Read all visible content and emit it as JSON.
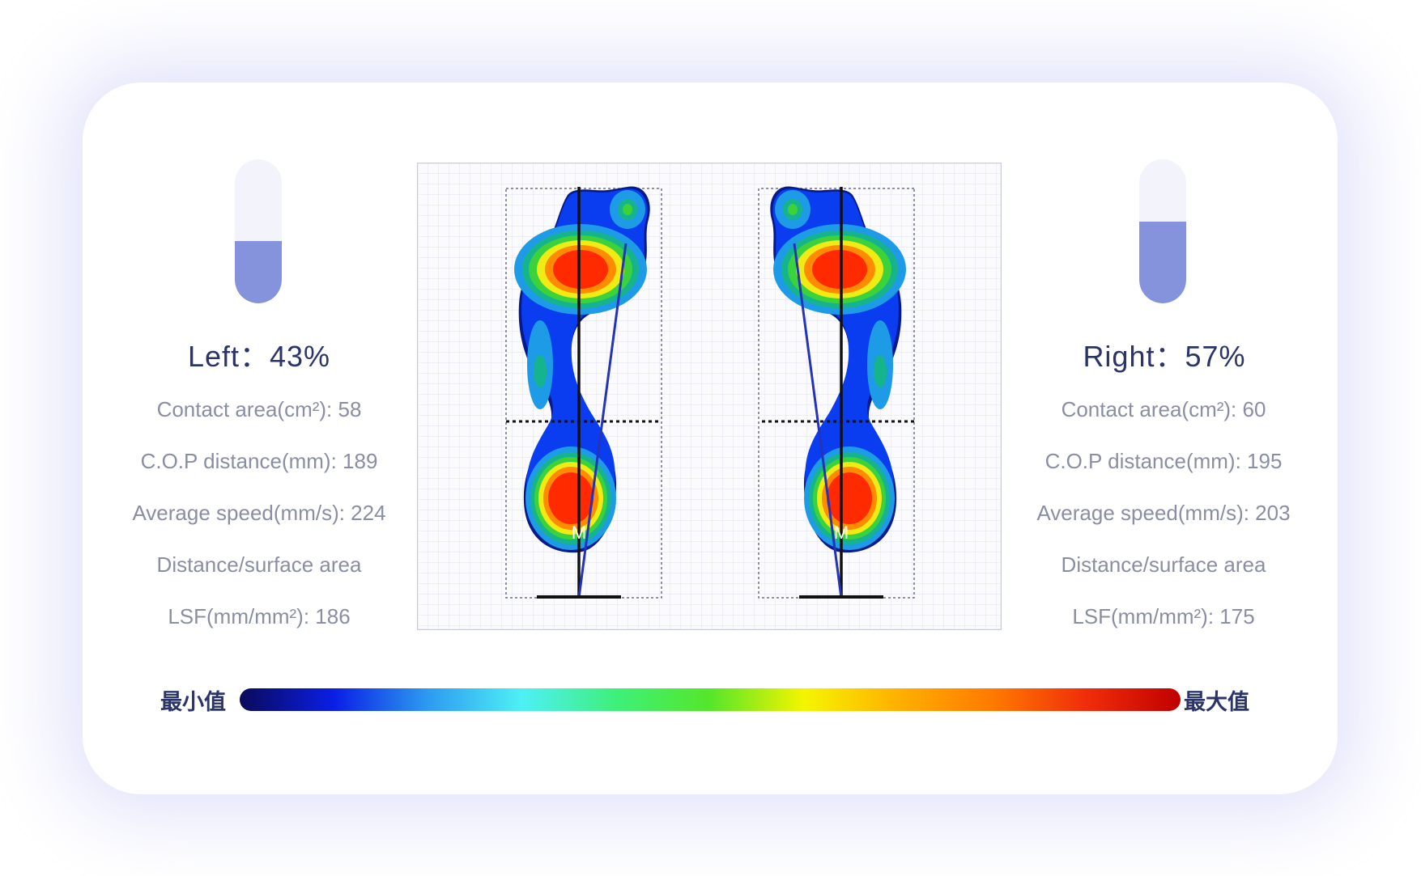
{
  "left": {
    "label": "Left",
    "percent_text": "43%",
    "level": 0.43,
    "metrics": [
      "Contact area(cm²): 58",
      "C.O.P distance(mm): 189",
      "Average speed(mm/s): 224",
      "Distance/surface area",
      "LSF(mm/mm²): 186"
    ],
    "marker": "M"
  },
  "right": {
    "label": "Right",
    "percent_text": "57%",
    "level": 0.57,
    "metrics": [
      "Contact area(cm²): 60",
      "C.O.P distance(mm): 195",
      "Average speed(mm/s): 203",
      "Distance/surface area",
      "LSF(mm/mm²): 175"
    ],
    "marker": "M"
  },
  "separator": "：",
  "scale": {
    "min_label": "最小值",
    "max_label": "最大值",
    "colors": [
      "#0a0a5a",
      "#0a1ee6",
      "#2d9bf0",
      "#4ef0f5",
      "#3ef07a",
      "#55e62a",
      "#f5f500",
      "#ffb000",
      "#ff7a00",
      "#f02d0a",
      "#c00000"
    ]
  },
  "heatmap_colors": {
    "outline": "#061a8c",
    "level1": "#0a3cf0",
    "level2": "#1e9be6",
    "level3": "#16b48c",
    "level4": "#3cd23c",
    "level5": "#f0eb14",
    "level6": "#ff8c00",
    "level7": "#ff2a00",
    "core": "#d2141e"
  }
}
